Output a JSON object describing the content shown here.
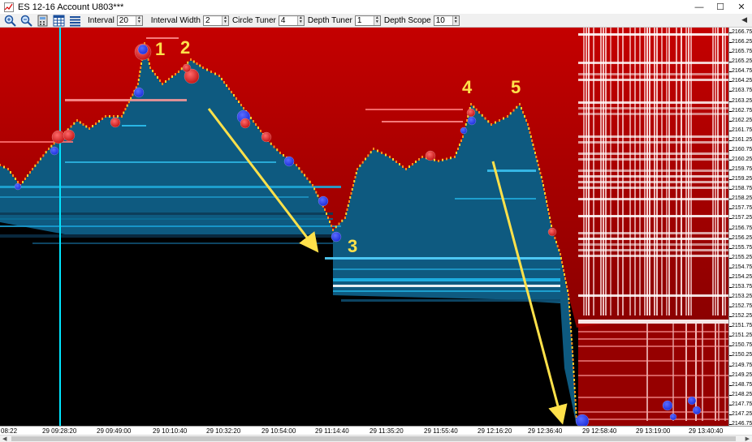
{
  "window": {
    "title": "ES 12-16  Account U803***",
    "minimize_glyph": "—",
    "maximize_glyph": "☐",
    "close_glyph": "✕"
  },
  "toolbar": {
    "icons": [
      "zoom-in-icon",
      "zoom-out-icon",
      "calculator-icon",
      "grid-icon",
      "depth-bars-icon"
    ],
    "fields": [
      {
        "label": "Interval",
        "value": "20"
      },
      {
        "label": "Interval Width",
        "value": "2"
      },
      {
        "label": "Circle Tuner",
        "value": "4"
      },
      {
        "label": "Depth Tuner",
        "value": "1"
      },
      {
        "label": "Depth Scope",
        "value": "10"
      }
    ],
    "collapse_glyph": "◀"
  },
  "price_axis": [
    "2166.75",
    "2166.25",
    "2165.75",
    "2165.25",
    "2164.75",
    "2164.25",
    "2163.75",
    "2163.25",
    "2162.75",
    "2162.25",
    "2161.75",
    "2161.25",
    "2160.75",
    "2160.25",
    "2159.75",
    "2159.25",
    "2158.75",
    "2158.25",
    "2157.75",
    "2157.25",
    "2156.75",
    "2156.25",
    "2155.75",
    "2155.25",
    "2154.75",
    "2154.25",
    "2153.75",
    "2153.25",
    "2152.75",
    "2152.25",
    "2151.75",
    "2151.25",
    "2150.75",
    "2150.25",
    "2149.75",
    "2149.25",
    "2148.75",
    "2148.25",
    "2147.75",
    "2147.25",
    "2146.75"
  ],
  "time_axis": [
    "08:22",
    "29 09:28:20",
    "29 09:49:00",
    "29 10:10:40",
    "29 10:32:20",
    "29 10:54:00",
    "29 11:14:40",
    "29 11:35:20",
    "29 11:55:40",
    "29 12:16:20",
    "29 12:36:40",
    "29 12:58:40",
    "29 13:19:00",
    "29 13:40:40"
  ],
  "annotations": [
    "1",
    "2",
    "3",
    "4",
    "5"
  ],
  "colors": {
    "bid_light": "#00c8ff",
    "bid_dark": "#0a4060",
    "ask": "#d40000",
    "ask_light": "#ff8080",
    "cursor": "#00e5ff",
    "arrow": "#ffe14a",
    "bubble_blue": "#1a2cd8",
    "bubble_red": "#e01818"
  }
}
